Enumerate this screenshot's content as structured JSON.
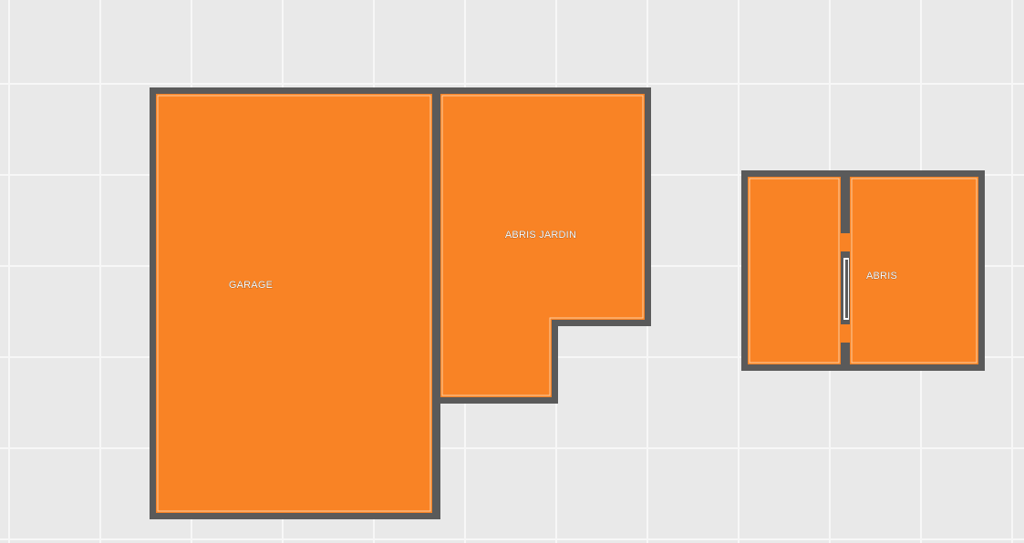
{
  "floorplan": {
    "colors": {
      "background": "#e9e9e9",
      "grid_line": "#f7f7f7",
      "wall": "#5a5a5a",
      "room_fill": "#f98325",
      "room_edge_highlight": "#fff2e0"
    },
    "rooms": [
      {
        "id": "garage",
        "label": "GARAGE"
      },
      {
        "id": "abris-jardin",
        "label": "ABRIS JARDIN"
      },
      {
        "id": "abris",
        "label": "ABRIS"
      }
    ]
  }
}
